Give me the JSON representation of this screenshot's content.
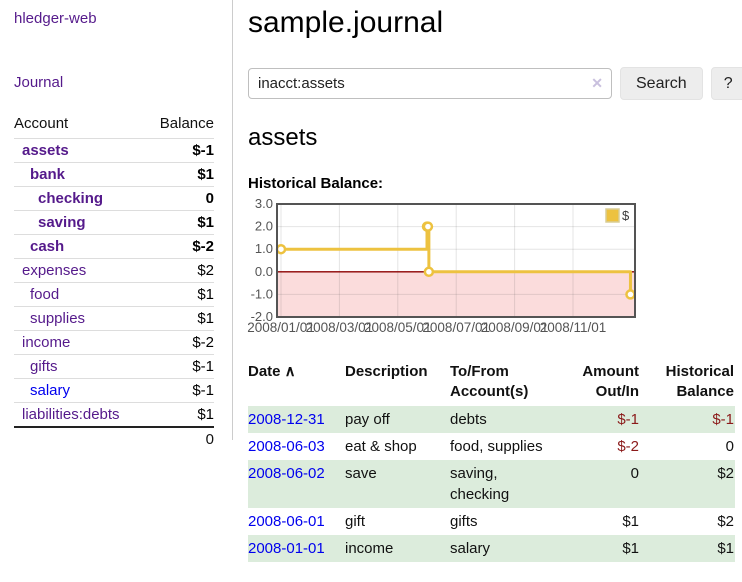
{
  "app": {
    "title": "hledger-web",
    "nav_journal": "Journal"
  },
  "sidebar": {
    "col_account": "Account",
    "col_balance": "Balance",
    "accounts": [
      {
        "name": "assets",
        "depth": 0,
        "balance": "$-1",
        "bold": true,
        "blue": false,
        "balance_class": "neg"
      },
      {
        "name": "bank",
        "depth": 1,
        "balance": "$1",
        "bold": true,
        "blue": false,
        "balance_class": ""
      },
      {
        "name": "checking",
        "depth": 2,
        "balance": "0",
        "bold": true,
        "blue": false,
        "balance_class": ""
      },
      {
        "name": "saving",
        "depth": 2,
        "balance": "$1",
        "bold": true,
        "blue": false,
        "balance_class": ""
      },
      {
        "name": "cash",
        "depth": 1,
        "balance": "$-2",
        "bold": true,
        "blue": false,
        "balance_class": "neg"
      },
      {
        "name": "expenses",
        "depth": 0,
        "balance": "$2",
        "bold": false,
        "blue": false,
        "balance_class": ""
      },
      {
        "name": "food",
        "depth": 1,
        "balance": "$1",
        "bold": false,
        "blue": false,
        "balance_class": ""
      },
      {
        "name": "supplies",
        "depth": 1,
        "balance": "$1",
        "bold": false,
        "blue": false,
        "balance_class": ""
      },
      {
        "name": "income",
        "depth": 0,
        "balance": "$-2",
        "bold": false,
        "blue": false,
        "balance_class": "neg-muted"
      },
      {
        "name": "gifts",
        "depth": 1,
        "balance": "$-1",
        "bold": false,
        "blue": false,
        "balance_class": "neg-muted"
      },
      {
        "name": "salary",
        "depth": 1,
        "balance": "$-1",
        "bold": false,
        "blue": true,
        "balance_class": "neg-muted"
      },
      {
        "name": "liabilities:debts",
        "depth": 0,
        "balance": "$1",
        "bold": false,
        "blue": false,
        "balance_class": ""
      }
    ],
    "total": "0"
  },
  "header": {
    "title": "sample.journal"
  },
  "search": {
    "value": "inacct:assets",
    "clear_icon": "✕",
    "button_label": "Search",
    "help_label": "?"
  },
  "account_page": {
    "title": "assets",
    "section_label": "Historical Balance:"
  },
  "chart_data": {
    "type": "line",
    "step": true,
    "title": "Historical Balance",
    "series": [
      {
        "name": "$",
        "color": "#edc240",
        "points": [
          [
            "2008/01/01",
            1.0
          ],
          [
            "2008/06/01",
            2.0
          ],
          [
            "2008/06/02",
            2.0
          ],
          [
            "2008/06/03",
            0.0
          ],
          [
            "2008/12/31",
            -1.0
          ]
        ]
      }
    ],
    "x_tick_labels": [
      "2008/01/01",
      "2008/03/01",
      "2008/05/01",
      "2008/07/01",
      "2008/09/01",
      "2008/11/01"
    ],
    "y_tick_labels": [
      "3.0",
      "2.0",
      "1.0",
      "0.0",
      "-1.0",
      "-2.0"
    ],
    "ylim": [
      -2,
      3
    ],
    "grid": true,
    "legend": {
      "label": "$",
      "position": "top-right"
    },
    "zero_line_color": "#8b0000",
    "negative_region_fill": "#fbdcdc",
    "line_color": "#edc240",
    "border_color": "#545454",
    "tick_label_color": "#545454"
  },
  "register": {
    "columns": [
      {
        "label": "Date",
        "sort_icon": "∧",
        "align": "left"
      },
      {
        "label": "Description",
        "align": "left"
      },
      {
        "label": "To/From Account(s)",
        "align": "left"
      },
      {
        "label": "Amount Out/In",
        "align": "right"
      },
      {
        "label": "Historical Balance",
        "align": "right"
      }
    ],
    "rows": [
      {
        "date": "2008-12-31",
        "description": "pay off",
        "accounts": "debts",
        "amount": "$-1",
        "amount_neg": true,
        "balance": "$-1",
        "balance_neg": true
      },
      {
        "date": "2008-06-03",
        "description": "eat & shop",
        "accounts": "food, supplies",
        "amount": "$-2",
        "amount_neg": true,
        "balance": "0",
        "balance_neg": false
      },
      {
        "date": "2008-06-02",
        "description": "save",
        "accounts": "saving, checking",
        "amount": "0",
        "amount_neg": false,
        "balance": "$2",
        "balance_neg": false
      },
      {
        "date": "2008-06-01",
        "description": "gift",
        "accounts": "gifts",
        "amount": "$1",
        "amount_neg": false,
        "balance": "$2",
        "balance_neg": false
      },
      {
        "date": "2008-01-01",
        "description": "income",
        "accounts": "salary",
        "amount": "$1",
        "amount_neg": false,
        "balance": "$1",
        "balance_neg": false
      }
    ]
  }
}
